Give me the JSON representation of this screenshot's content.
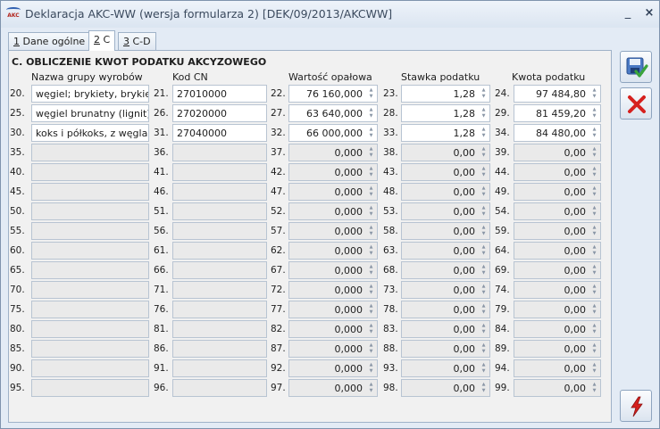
{
  "window": {
    "title": "Deklaracja AKC-WW (wersja formularza 2) [DEK/09/2013/AKCWW]",
    "minimize": "_",
    "close": "×",
    "app_icon": "AKC"
  },
  "tabs": [
    {
      "key": "1",
      "rest": " Dane ogólne"
    },
    {
      "key": "2",
      "rest": " C"
    },
    {
      "key": "3",
      "rest": " C-D"
    }
  ],
  "section": {
    "title": "C. OBLICZENIE KWOT PODATKU AKCYZOWEGO",
    "headers": {
      "name": "Nazwa grupy wyrobów",
      "cn": "Kod CN",
      "value": "Wartość opałowa",
      "rate": "Stawka podatku",
      "amount": "Kwota podatku"
    }
  },
  "rows": [
    {
      "n": [
        "20.",
        "21.",
        "22.",
        "23.",
        "24."
      ],
      "name": "węgiel; brykiety, brykietki",
      "cn": "27010000",
      "value": "76 160,000",
      "rate": "1,28",
      "amount": "97 484,80"
    },
    {
      "n": [
        "25.",
        "26.",
        "27.",
        "28.",
        "29."
      ],
      "name": "węgiel brunatny (lignit), na",
      "cn": "27020000",
      "value": "63 640,000",
      "rate": "1,28",
      "amount": "81 459,20"
    },
    {
      "n": [
        "30.",
        "31.",
        "32.",
        "33.",
        "34."
      ],
      "name": "koks i półkoks, z węgla, we",
      "cn": "27040000",
      "value": "66 000,000",
      "rate": "1,28",
      "amount": "84 480,00"
    },
    {
      "n": [
        "35.",
        "36.",
        "37.",
        "38.",
        "39."
      ],
      "name": "",
      "cn": "",
      "value": "0,000",
      "rate": "0,00",
      "amount": "0,00"
    },
    {
      "n": [
        "40.",
        "41.",
        "42.",
        "43.",
        "44."
      ],
      "name": "",
      "cn": "",
      "value": "0,000",
      "rate": "0,00",
      "amount": "0,00"
    },
    {
      "n": [
        "45.",
        "46.",
        "47.",
        "48.",
        "49."
      ],
      "name": "",
      "cn": "",
      "value": "0,000",
      "rate": "0,00",
      "amount": "0,00"
    },
    {
      "n": [
        "50.",
        "51.",
        "52.",
        "53.",
        "54."
      ],
      "name": "",
      "cn": "",
      "value": "0,000",
      "rate": "0,00",
      "amount": "0,00"
    },
    {
      "n": [
        "55.",
        "56.",
        "57.",
        "58.",
        "59."
      ],
      "name": "",
      "cn": "",
      "value": "0,000",
      "rate": "0,00",
      "amount": "0,00"
    },
    {
      "n": [
        "60.",
        "61.",
        "62.",
        "63.",
        "64."
      ],
      "name": "",
      "cn": "",
      "value": "0,000",
      "rate": "0,00",
      "amount": "0,00"
    },
    {
      "n": [
        "65.",
        "66.",
        "67.",
        "68.",
        "69."
      ],
      "name": "",
      "cn": "",
      "value": "0,000",
      "rate": "0,00",
      "amount": "0,00"
    },
    {
      "n": [
        "70.",
        "71.",
        "72.",
        "73.",
        "74."
      ],
      "name": "",
      "cn": "",
      "value": "0,000",
      "rate": "0,00",
      "amount": "0,00"
    },
    {
      "n": [
        "75.",
        "76.",
        "77.",
        "78.",
        "79."
      ],
      "name": "",
      "cn": "",
      "value": "0,000",
      "rate": "0,00",
      "amount": "0,00"
    },
    {
      "n": [
        "80.",
        "81.",
        "82.",
        "83.",
        "84."
      ],
      "name": "",
      "cn": "",
      "value": "0,000",
      "rate": "0,00",
      "amount": "0,00"
    },
    {
      "n": [
        "85.",
        "86.",
        "87.",
        "88.",
        "89."
      ],
      "name": "",
      "cn": "",
      "value": "0,000",
      "rate": "0,00",
      "amount": "0,00"
    },
    {
      "n": [
        "90.",
        "91.",
        "92.",
        "93.",
        "94."
      ],
      "name": "",
      "cn": "",
      "value": "0,000",
      "rate": "0,00",
      "amount": "0,00"
    },
    {
      "n": [
        "95.",
        "96.",
        "97.",
        "98.",
        "99."
      ],
      "name": "",
      "cn": "",
      "value": "0,000",
      "rate": "0,00",
      "amount": "0,00"
    }
  ],
  "buttons": {
    "save_icon": "save-check-icon",
    "cancel_icon": "cancel-x-icon",
    "action_icon": "lightning-icon"
  },
  "colors": {
    "cancel": "#d6201e",
    "save_check": "#3aa43a",
    "lightning": "#d6201e"
  }
}
